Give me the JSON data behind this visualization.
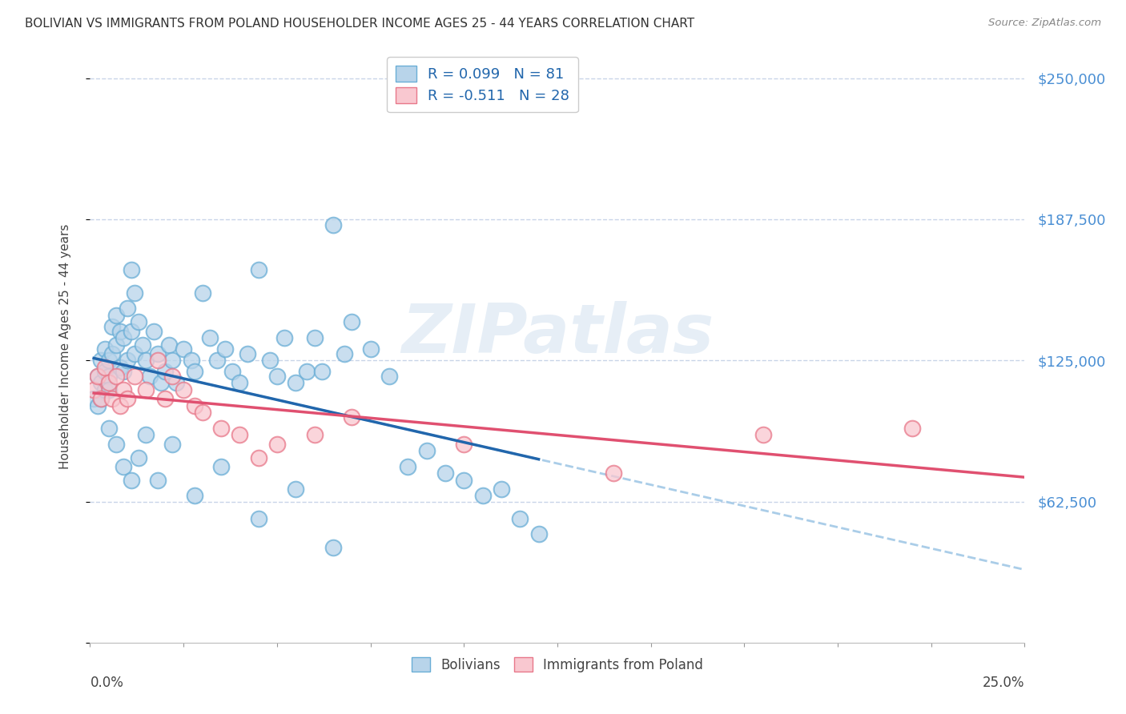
{
  "title": "BOLIVIAN VS IMMIGRANTS FROM POLAND HOUSEHOLDER INCOME AGES 25 - 44 YEARS CORRELATION CHART",
  "source": "Source: ZipAtlas.com",
  "ylabel": "Householder Income Ages 25 - 44 years",
  "xlim": [
    0.0,
    0.25
  ],
  "ylim": [
    0,
    262500
  ],
  "yticks": [
    0,
    62500,
    125000,
    187500,
    250000
  ],
  "ytick_labels": [
    "",
    "$62,500",
    "$125,000",
    "$187,500",
    "$250,000"
  ],
  "blue_R": 0.099,
  "blue_N": 81,
  "pink_R": -0.511,
  "pink_N": 28,
  "blue_fill": "#b8d4ea",
  "blue_edge": "#6aaed6",
  "pink_fill": "#f9c8d0",
  "pink_edge": "#e8788a",
  "trend_blue_solid": "#2166ac",
  "trend_pink_solid": "#e05070",
  "trend_blue_dashed": "#aacde8",
  "background_color": "#ffffff",
  "grid_color": "#c8d4e8",
  "watermark": "ZIPatlas",
  "legend_label_blue": "Bolivians",
  "legend_label_pink": "Immigrants from Poland",
  "legend_R_color": "#2166ac",
  "legend_N_color": "#2166ac",
  "blue_x": [
    0.001,
    0.002,
    0.002,
    0.003,
    0.003,
    0.003,
    0.004,
    0.004,
    0.004,
    0.005,
    0.005,
    0.005,
    0.006,
    0.006,
    0.007,
    0.007,
    0.008,
    0.008,
    0.009,
    0.009,
    0.01,
    0.01,
    0.011,
    0.011,
    0.012,
    0.012,
    0.013,
    0.014,
    0.015,
    0.016,
    0.017,
    0.018,
    0.019,
    0.02,
    0.021,
    0.022,
    0.023,
    0.025,
    0.027,
    0.028,
    0.03,
    0.032,
    0.034,
    0.036,
    0.038,
    0.04,
    0.042,
    0.045,
    0.048,
    0.05,
    0.052,
    0.055,
    0.058,
    0.06,
    0.062,
    0.065,
    0.068,
    0.07,
    0.075,
    0.08,
    0.085,
    0.09,
    0.095,
    0.1,
    0.105,
    0.11,
    0.115,
    0.12,
    0.005,
    0.007,
    0.009,
    0.011,
    0.013,
    0.015,
    0.018,
    0.022,
    0.028,
    0.035,
    0.045,
    0.055,
    0.065
  ],
  "blue_y": [
    108000,
    118000,
    105000,
    125000,
    115000,
    108000,
    130000,
    120000,
    112000,
    118000,
    125000,
    112000,
    140000,
    128000,
    145000,
    132000,
    138000,
    122000,
    135000,
    120000,
    148000,
    125000,
    165000,
    138000,
    155000,
    128000,
    142000,
    132000,
    125000,
    118000,
    138000,
    128000,
    115000,
    120000,
    132000,
    125000,
    115000,
    130000,
    125000,
    120000,
    155000,
    135000,
    125000,
    130000,
    120000,
    115000,
    128000,
    165000,
    125000,
    118000,
    135000,
    115000,
    120000,
    135000,
    120000,
    185000,
    128000,
    142000,
    130000,
    118000,
    78000,
    85000,
    75000,
    72000,
    65000,
    68000,
    55000,
    48000,
    95000,
    88000,
    78000,
    72000,
    82000,
    92000,
    72000,
    88000,
    65000,
    78000,
    55000,
    68000,
    42000
  ],
  "pink_x": [
    0.001,
    0.002,
    0.003,
    0.004,
    0.005,
    0.006,
    0.007,
    0.008,
    0.009,
    0.01,
    0.012,
    0.015,
    0.018,
    0.02,
    0.022,
    0.025,
    0.028,
    0.03,
    0.035,
    0.04,
    0.045,
    0.05,
    0.06,
    0.07,
    0.1,
    0.14,
    0.18,
    0.22
  ],
  "pink_y": [
    112000,
    118000,
    108000,
    122000,
    115000,
    108000,
    118000,
    105000,
    112000,
    108000,
    118000,
    112000,
    125000,
    108000,
    118000,
    112000,
    105000,
    102000,
    95000,
    92000,
    82000,
    88000,
    92000,
    100000,
    88000,
    75000,
    92000,
    95000
  ]
}
